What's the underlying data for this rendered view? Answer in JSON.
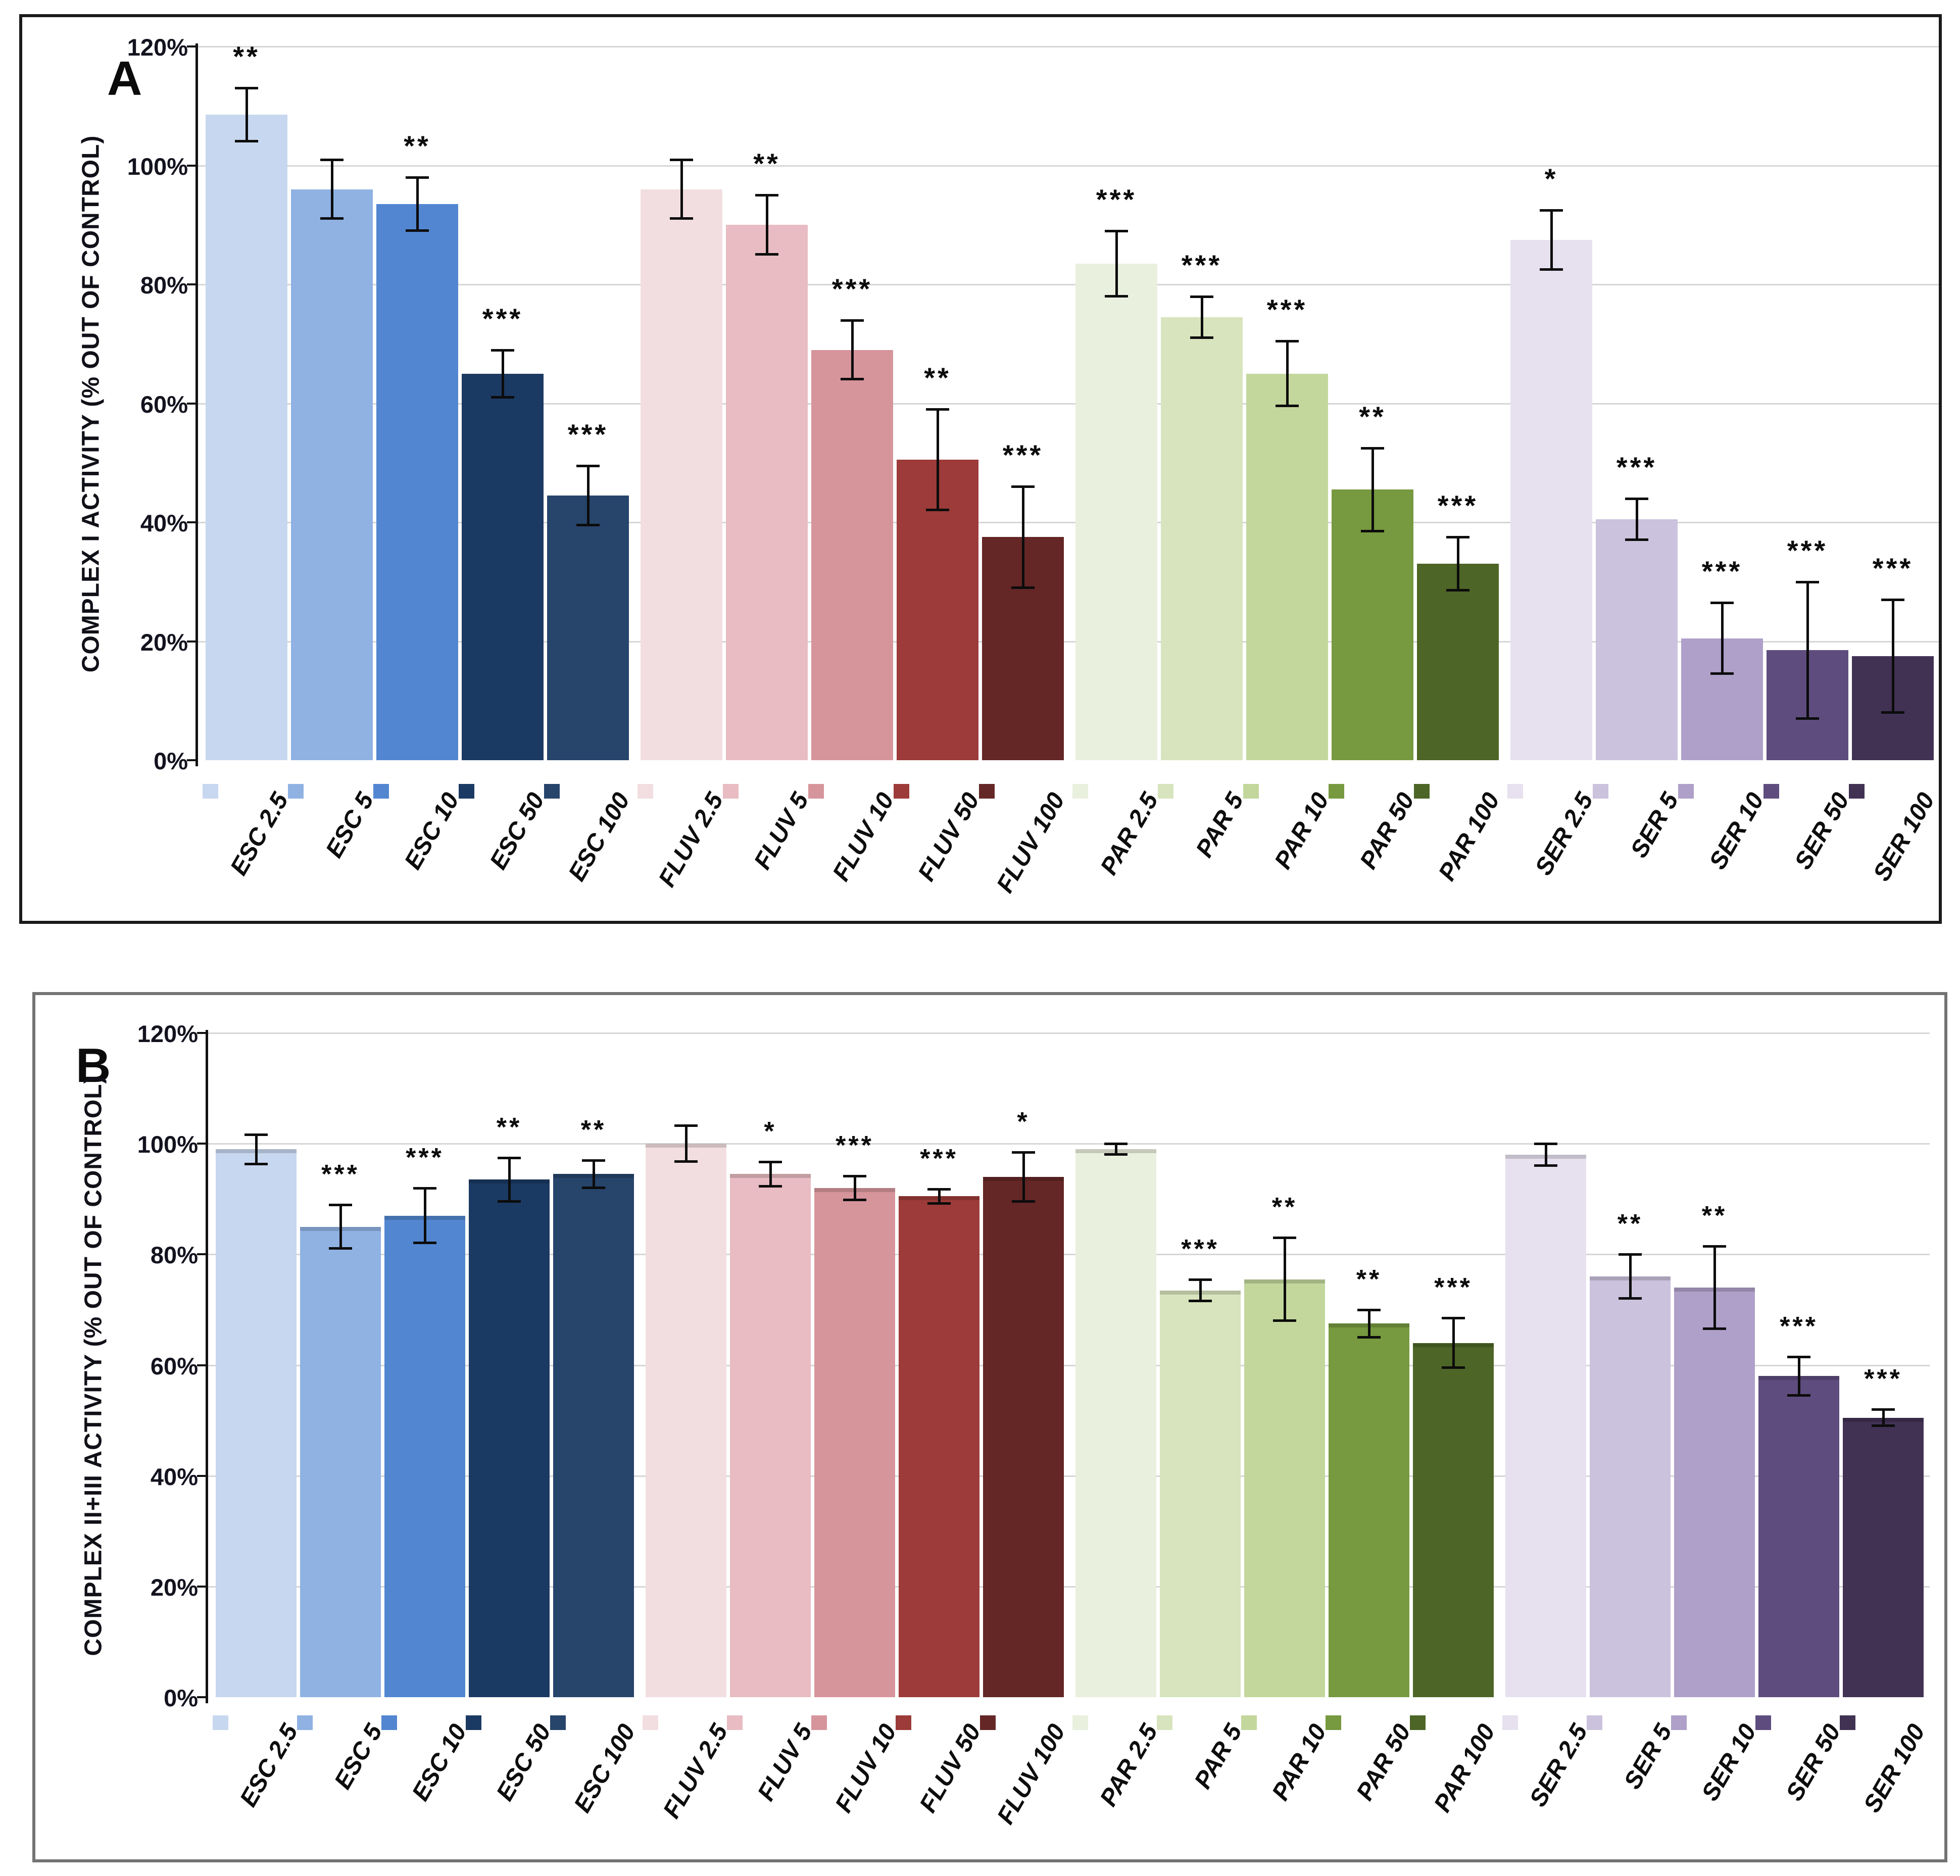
{
  "chart_data": [
    {
      "type": "bar",
      "panel_label": "A",
      "title": "",
      "xlabel": "",
      "ylabel": "COMPLEX I ACTIVITY (% OUT OF CONTROL)",
      "ylim": [
        0,
        120
      ],
      "yticks_percent": [
        0,
        20,
        40,
        60,
        80,
        100,
        120
      ],
      "ytick_suffix": "%",
      "grid": true,
      "legend_position": "below-axis-swatches",
      "groups": [
        "ESC",
        "FLUV",
        "PAR",
        "SER"
      ],
      "categories": [
        "ESC 2.5",
        "ESC 5",
        "ESC 10",
        "ESC 50",
        "ESC 100",
        "FLUV 2.5",
        "FLUV 5",
        "FLUV 10",
        "FLUV 50",
        "FLUV 100",
        "PAR 2.5",
        "PAR 5",
        "PAR 10",
        "PAR 50",
        "PAR 100",
        "SER 2.5",
        "SER 5",
        "SER 10",
        "SER 50",
        "SER 100"
      ],
      "values": [
        108.5,
        96,
        93.5,
        65,
        44.5,
        96,
        90,
        69,
        50.5,
        37.5,
        83.5,
        74.5,
        65,
        45.5,
        33,
        87.5,
        40.5,
        20.5,
        18.5,
        17.5
      ],
      "errors": [
        4.5,
        5,
        4.5,
        4,
        5,
        5,
        5,
        5,
        8.5,
        8.5,
        5.5,
        3.5,
        5.5,
        7,
        4.5,
        5,
        3.5,
        6,
        11.5,
        9.5
      ],
      "significance": [
        "**",
        "",
        "**",
        "***",
        "***",
        "",
        "**",
        "***",
        "**",
        "***",
        "***",
        "***",
        "***",
        "**",
        "***",
        "*",
        "***",
        "***",
        "***",
        "***"
      ],
      "bar_colors": [
        "#c7d7ef",
        "#8fb2e3",
        "#5286d0",
        "#1b3a63",
        "#27446b",
        "#f2dee1",
        "#e8bcc2",
        "#d6959b",
        "#9c3b39",
        "#642726",
        "#eaf0de",
        "#d7e4bd",
        "#c3d79c",
        "#77993f",
        "#4d6526",
        "#e6e0ef",
        "#cbc2dd",
        "#aea0c9",
        "#5e4c7e",
        "#413254"
      ]
    },
    {
      "type": "bar",
      "panel_label": "B",
      "title": "",
      "xlabel": "",
      "ylabel": "COMPLEX II+III ACTIVITY (% OUT OF CONTROL)",
      "ylim": [
        0,
        120
      ],
      "yticks_percent": [
        0,
        20,
        40,
        60,
        80,
        100,
        120
      ],
      "ytick_suffix": "%",
      "grid": true,
      "legend_position": "below-axis-swatches",
      "groups": [
        "ESC",
        "FLUV",
        "PAR",
        "SER"
      ],
      "categories": [
        "ESC 2.5",
        "ESC 5",
        "ESC 10",
        "ESC 50",
        "ESC 100",
        "FLUV 2.5",
        "FLUV 5",
        "FLUV 10",
        "FLUV 50",
        "FLUV 100",
        "PAR 2.5",
        "PAR 5",
        "PAR 10",
        "PAR 50",
        "PAR 100",
        "SER 2.5",
        "SER 5",
        "SER 10",
        "SER 50",
        "SER 100"
      ],
      "values": [
        99,
        85,
        87,
        93.5,
        94.5,
        100,
        94.5,
        92,
        90.5,
        94,
        99,
        73.5,
        75.5,
        67.5,
        64,
        98,
        76,
        74,
        58,
        50.5
      ],
      "errors": [
        2.7,
        4,
        5,
        4,
        2.5,
        3.3,
        2.2,
        2.2,
        1.3,
        4.5,
        1,
        2,
        7.5,
        2.5,
        4.5,
        2,
        4,
        7.5,
        3.5,
        1.5
      ],
      "significance": [
        "",
        "***",
        "***",
        "**",
        "**",
        "",
        "*",
        "***",
        "***",
        "*",
        "",
        "***",
        "**",
        "**",
        "***",
        "",
        "**",
        "**",
        "***",
        "***"
      ],
      "bar_colors": [
        "#c7d7ef",
        "#8fb2e3",
        "#5286d0",
        "#1b3a63",
        "#27446b",
        "#f2dee1",
        "#e8bcc2",
        "#d6959b",
        "#9c3b39",
        "#642726",
        "#eaf0de",
        "#d7e4bd",
        "#c3d79c",
        "#77993f",
        "#4d6526",
        "#e6e0ef",
        "#cbc2dd",
        "#aea0c9",
        "#5e4c7e",
        "#413254"
      ]
    }
  ]
}
